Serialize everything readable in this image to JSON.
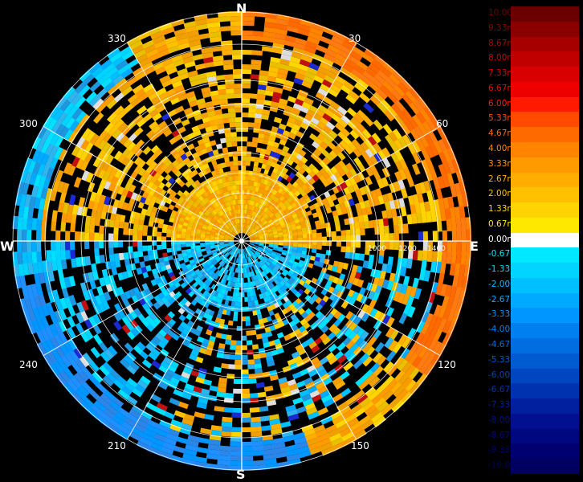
{
  "compass": {
    "north": "N",
    "east": "E",
    "south": "S",
    "west": "W"
  },
  "azimuth_labels": [
    "30",
    "60",
    "120",
    "150",
    "210",
    "240",
    "300",
    "330"
  ],
  "range_labels": [
    "1000",
    "1200",
    "1400"
  ],
  "legend": {
    "entries": [
      {
        "label": "10.00m/s",
        "color": "#6b0000"
      },
      {
        "label": "9.33m/s",
        "color": "#8a0000"
      },
      {
        "label": "8.67m/s",
        "color": "#a60000"
      },
      {
        "label": "8.00m/s",
        "color": "#c00000"
      },
      {
        "label": "7.33m/s",
        "color": "#d80000"
      },
      {
        "label": "6.67m/s",
        "color": "#ee0000"
      },
      {
        "label": "6.00m/s",
        "color": "#ff1a00"
      },
      {
        "label": "5.33m/s",
        "color": "#ff4a00"
      },
      {
        "label": "4.67m/s",
        "color": "#ff6a00"
      },
      {
        "label": "4.00m/s",
        "color": "#ff8400"
      },
      {
        "label": "3.33m/s",
        "color": "#ff9a00"
      },
      {
        "label": "2.67m/s",
        "color": "#ffae00"
      },
      {
        "label": "2.00m/s",
        "color": "#ffc000"
      },
      {
        "label": "1.33m/s",
        "color": "#ffd400"
      },
      {
        "label": "0.67m/s",
        "color": "#ffe800"
      },
      {
        "label": "0.00m/s",
        "color": "#ffffff"
      },
      {
        "label": "-0.67m/s",
        "color": "#00e8ff"
      },
      {
        "label": "-1.33m/s",
        "color": "#00d4ff"
      },
      {
        "label": "-2.00m/s",
        "color": "#00c0ff"
      },
      {
        "label": "-2.67m/s",
        "color": "#00aaff"
      },
      {
        "label": "-3.33m/s",
        "color": "#0096ff"
      },
      {
        "label": "-4.00m/s",
        "color": "#0080f0"
      },
      {
        "label": "-4.67m/s",
        "color": "#006ee0"
      },
      {
        "label": "-5.33m/s",
        "color": "#005ad0"
      },
      {
        "label": "-6.00m/s",
        "color": "#0046c0"
      },
      {
        "label": "-6.67m/s",
        "color": "#0032b0"
      },
      {
        "label": "-7.33m/s",
        "color": "#0020a0"
      },
      {
        "label": "-8.00m/s",
        "color": "#00108e"
      },
      {
        "label": "-8.67m/s",
        "color": "#000880"
      },
      {
        "label": "-9.33m/s",
        "color": "#000070"
      },
      {
        "label": "-10.00m/s",
        "color": "#000060"
      }
    ]
  },
  "colors": {
    "warm": [
      "#ffc000",
      "#ffae00",
      "#ff9a00",
      "#ffd400",
      "#e8c000",
      "#f0a000"
    ],
    "cool": [
      "#00d4ff",
      "#00c0ff",
      "#00aaff",
      "#1e96e0",
      "#30b4ee",
      "#00e0ff"
    ],
    "far_east": [
      "#ff6a00",
      "#ff7a10",
      "#ff8400"
    ],
    "far_south": [
      "#0096ff",
      "#1e90ff",
      "#2a86e8"
    ]
  }
}
